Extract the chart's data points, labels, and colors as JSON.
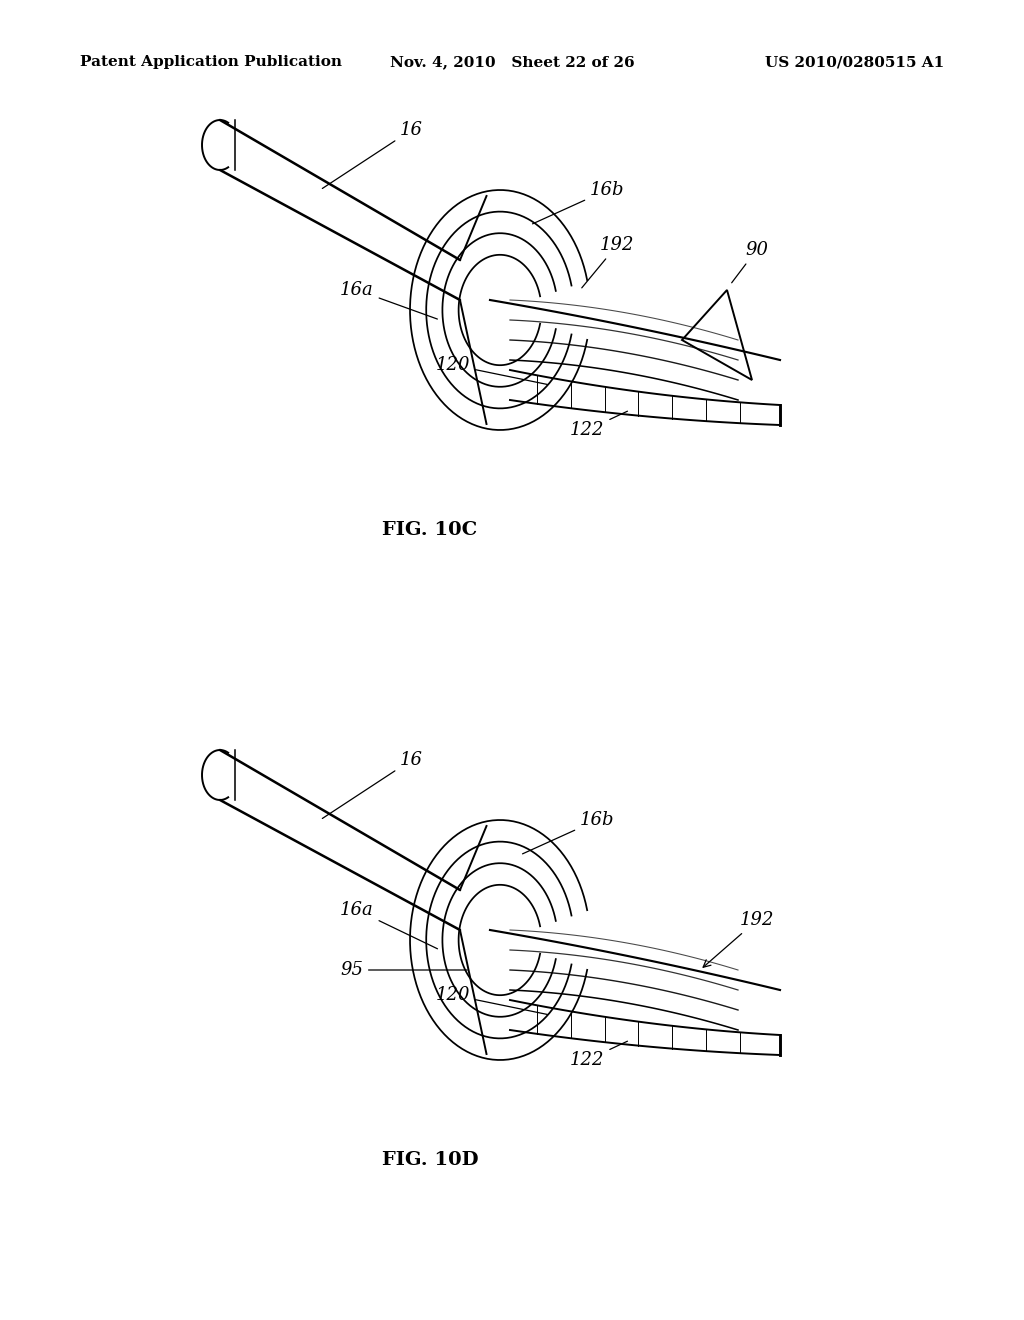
{
  "background_color": "#ffffff",
  "fig_width": 10.24,
  "fig_height": 13.2,
  "header_left": "Patent Application Publication",
  "header_center": "Nov. 4, 2010   Sheet 22 of 26",
  "header_right": "US 2010/0280515 A1",
  "header_fontsize": 11,
  "fig_label_top": "FIG. 10C",
  "fig_label_bottom": "FIG. 10D",
  "fig_label_fontsize": 14
}
